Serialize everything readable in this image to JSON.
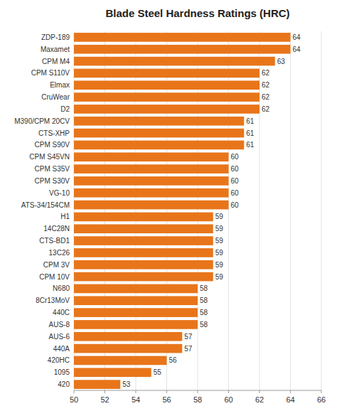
{
  "chart_data": {
    "type": "bar",
    "orientation": "horizontal",
    "title": "Blade Steel Hardness Ratings (HRC)",
    "categories": [
      "ZDP-189",
      "Maxamet",
      "CPM M4",
      "CPM S110V",
      "Elmax",
      "CruWear",
      "D2",
      "M390/CPM 20CV",
      "CTS-XHP",
      "CPM S90V",
      "CPM S45VN",
      "CPM S35V",
      "CPM S30V",
      "VG-10",
      "ATS-34/154CM",
      "H1",
      "14C28N",
      "CTS-BD1",
      "13C26",
      "CPM 3V",
      "CPM 10V",
      "N680",
      "8Cr13MoV",
      "440C",
      "AUS-8",
      "AUS-6",
      "440A",
      "420HC",
      "1095",
      "420"
    ],
    "values": [
      64,
      64,
      63,
      62,
      62,
      62,
      62,
      61,
      61,
      61,
      60,
      60,
      60,
      60,
      60,
      59,
      59,
      59,
      59,
      59,
      59,
      58,
      58,
      58,
      58,
      57,
      57,
      56,
      55,
      53
    ],
    "color": "#E8751A",
    "xlim": [
      50,
      66
    ],
    "xticks": [
      50,
      52,
      54,
      56,
      58,
      60,
      62,
      64,
      66
    ],
    "grid": true,
    "data_labels": true
  }
}
